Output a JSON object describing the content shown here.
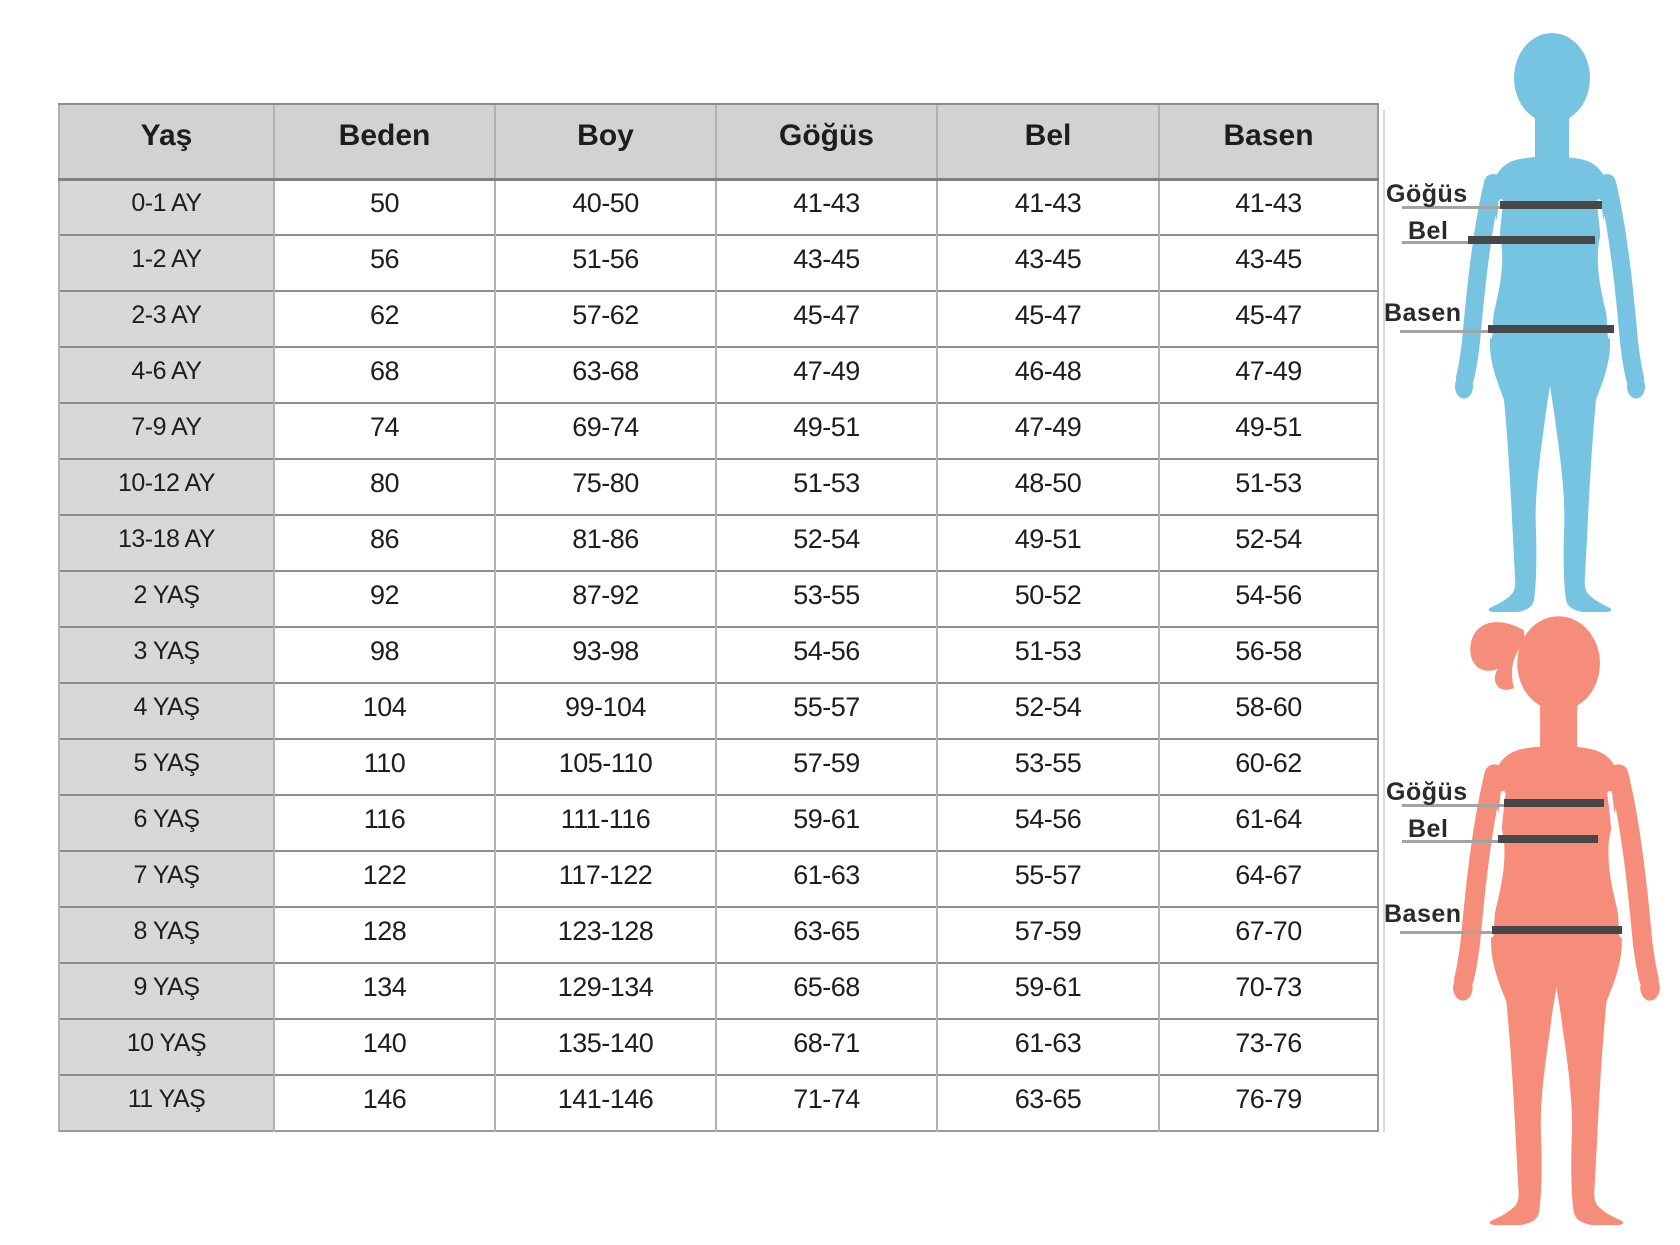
{
  "chart_data": {
    "type": "table",
    "columns": [
      "Yaş",
      "Beden",
      "Boy",
      "Göğüs",
      "Bel",
      "Basen"
    ],
    "rows": [
      [
        "0-1 AY",
        "50",
        "40-50",
        "41-43",
        "41-43",
        "41-43"
      ],
      [
        "1-2 AY",
        "56",
        "51-56",
        "43-45",
        "43-45",
        "43-45"
      ],
      [
        "2-3 AY",
        "62",
        "57-62",
        "45-47",
        "45-47",
        "45-47"
      ],
      [
        "4-6 AY",
        "68",
        "63-68",
        "47-49",
        "46-48",
        "47-49"
      ],
      [
        "7-9 AY",
        "74",
        "69-74",
        "49-51",
        "47-49",
        "49-51"
      ],
      [
        "10-12 AY",
        "80",
        "75-80",
        "51-53",
        "48-50",
        "51-53"
      ],
      [
        "13-18 AY",
        "86",
        "81-86",
        "52-54",
        "49-51",
        "52-54"
      ],
      [
        "2 YAŞ",
        "92",
        "87-92",
        "53-55",
        "50-52",
        "54-56"
      ],
      [
        "3 YAŞ",
        "98",
        "93-98",
        "54-56",
        "51-53",
        "56-58"
      ],
      [
        "4 YAŞ",
        "104",
        "99-104",
        "55-57",
        "52-54",
        "58-60"
      ],
      [
        "5 YAŞ",
        "110",
        "105-110",
        "57-59",
        "53-55",
        "60-62"
      ],
      [
        "6 YAŞ",
        "116",
        "111-116",
        "59-61",
        "54-56",
        "61-64"
      ],
      [
        "7 YAŞ",
        "122",
        "117-122",
        "61-63",
        "55-57",
        "64-67"
      ],
      [
        "8 YAŞ",
        "128",
        "123-128",
        "63-65",
        "57-59",
        "67-70"
      ],
      [
        "9 YAŞ",
        "134",
        "129-134",
        "65-68",
        "59-61",
        "70-73"
      ],
      [
        "10 YAŞ",
        "140",
        "135-140",
        "68-71",
        "61-63",
        "73-76"
      ],
      [
        "11 YAŞ",
        "146",
        "141-146",
        "71-74",
        "63-65",
        "76-79"
      ]
    ]
  },
  "figures": {
    "top": {
      "label_chest": "Göğüs",
      "label_waist": "Bel",
      "label_hips": "Basen"
    },
    "bottom": {
      "label_chest": "Göğüs",
      "label_waist": "Bel",
      "label_hips": "Basen"
    }
  },
  "colors": {
    "header_bg": "#d2d2d2",
    "age_col_bg": "#d8d8d8",
    "table_border": "#9b9b9b",
    "row_border": "#8d8d8d",
    "col_border": "#b2b2b2",
    "cell_text": "#1d1d1d",
    "label_text": "#2a2a2a",
    "figure_blue": "#76c4e2",
    "figure_pink": "#f68d7a",
    "measure_line_dark": "#474747",
    "measure_line_light": "#a3a3a3"
  }
}
